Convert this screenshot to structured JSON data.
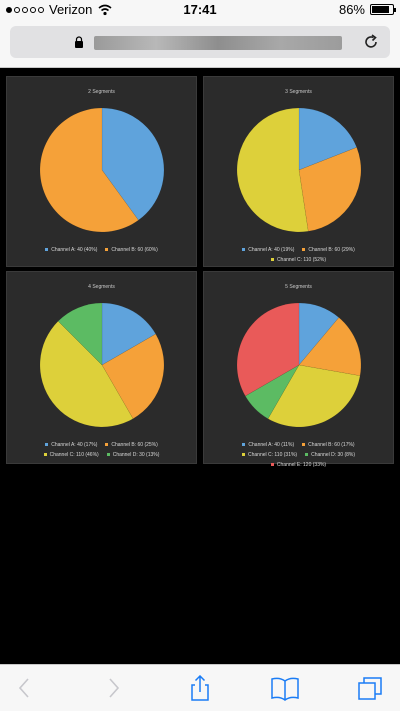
{
  "status_bar": {
    "carrier": "Verizon",
    "time": "17:41",
    "battery": "86%",
    "battery_level": 0.86,
    "signal_bars_filled": 1,
    "signal_bars_total": 5
  },
  "address_bar": {
    "lock_icon": "lock-icon",
    "reload_icon": "reload-icon"
  },
  "toolbar": {
    "icons": [
      "back-icon",
      "forward-icon",
      "share-icon",
      "bookmarks-icon",
      "tabs-icon"
    ]
  },
  "colors": {
    "blue": "#5fa3dc",
    "orange": "#f5a139",
    "yellow": "#ddd03a",
    "green": "#5cbb63",
    "red": "#e95a59",
    "panel_bg": "#2b2b2b"
  },
  "chart_data": [
    {
      "type": "pie",
      "title": "2 Segments",
      "categories": [
        "Channel A",
        "Channel B"
      ],
      "values": [
        40,
        60
      ],
      "colors": [
        "#5fa3dc",
        "#f5a139"
      ],
      "legend": [
        "Channel A: 40 (40%)",
        "Channel B: 60 (60%)"
      ],
      "legend_position": "bottom"
    },
    {
      "type": "pie",
      "title": "3 Segments",
      "categories": [
        "Channel A",
        "Channel B",
        "Channel C"
      ],
      "values": [
        40,
        60,
        110
      ],
      "colors": [
        "#5fa3dc",
        "#f5a139",
        "#ddd03a"
      ],
      "legend": [
        "Channel A: 40 (19%)",
        "Channel B: 60 (29%)",
        "Channel C: 110 (52%)"
      ],
      "legend_position": "bottom"
    },
    {
      "type": "pie",
      "title": "4 Segments",
      "categories": [
        "Channel A",
        "Channel B",
        "Channel C",
        "Channel D"
      ],
      "values": [
        40,
        60,
        110,
        30
      ],
      "colors": [
        "#5fa3dc",
        "#f5a139",
        "#ddd03a",
        "#5cbb63"
      ],
      "legend": [
        "Channel A: 40 (17%)",
        "Channel B: 60 (25%)",
        "Channel C: 110 (46%)",
        "Channel D: 30 (13%)"
      ],
      "legend_position": "bottom"
    },
    {
      "type": "pie",
      "title": "5 Segments",
      "categories": [
        "Channel A",
        "Channel B",
        "Channel C",
        "Channel D",
        "Channel E"
      ],
      "values": [
        40,
        60,
        110,
        30,
        120
      ],
      "colors": [
        "#5fa3dc",
        "#f5a139",
        "#ddd03a",
        "#5cbb63",
        "#e95a59"
      ],
      "legend": [
        "Channel A: 40 (11%)",
        "Channel B: 60 (17%)",
        "Channel C: 110 (31%)",
        "Channel D: 30 (8%)",
        "Channel E: 120 (33%)"
      ],
      "legend_position": "bottom"
    }
  ]
}
